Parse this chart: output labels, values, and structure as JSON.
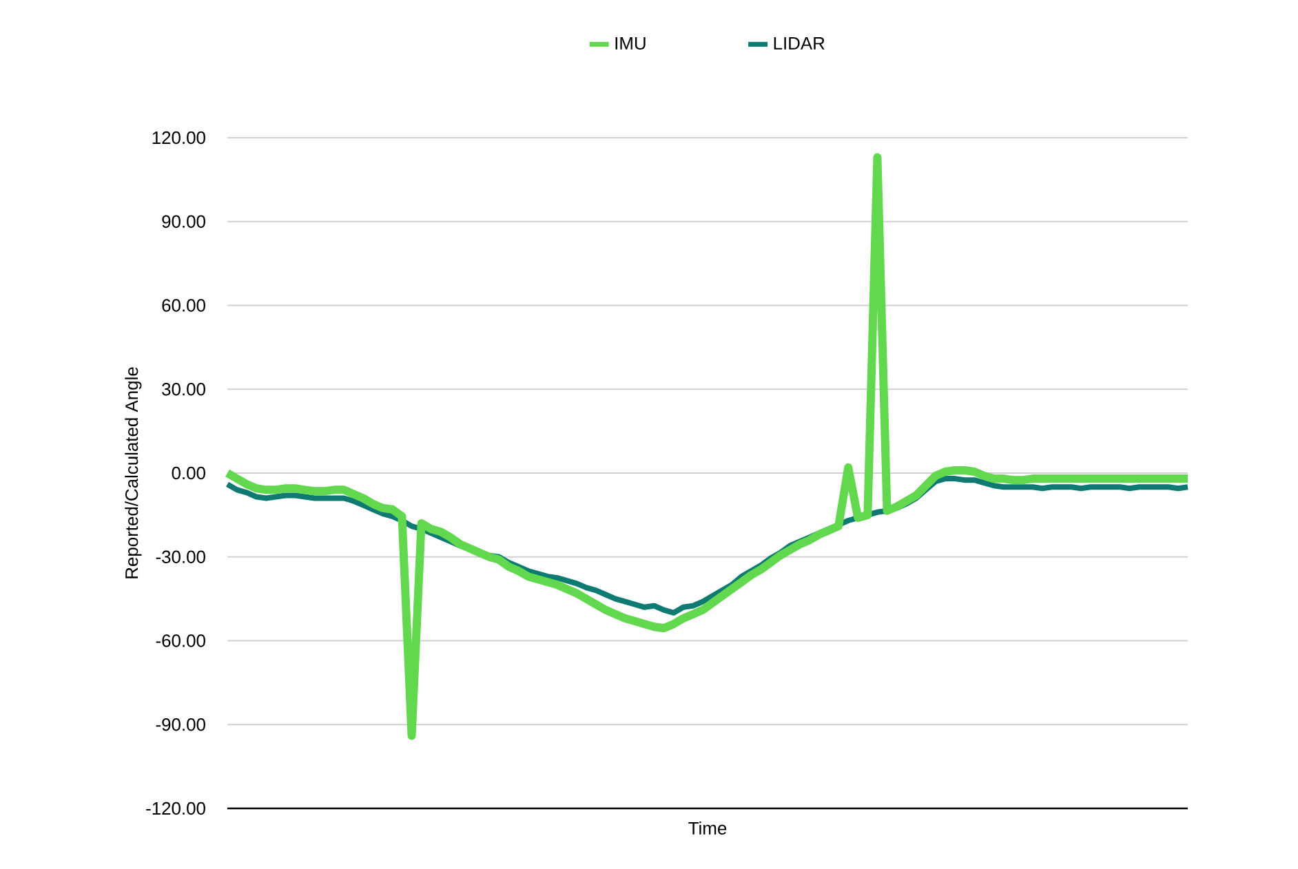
{
  "chart_data": {
    "type": "line",
    "xlabel": "Time",
    "ylabel": "Reported/Calculated Angle",
    "categories": [
      null,
      null,
      null,
      null,
      null,
      null,
      null,
      null,
      null,
      null,
      null,
      null,
      null,
      null,
      null,
      null,
      null,
      null,
      null,
      null,
      null,
      null,
      null,
      null,
      null,
      null,
      null,
      null,
      null,
      null,
      null,
      null,
      null,
      null,
      null,
      null,
      null,
      null,
      null,
      null,
      null,
      null,
      null,
      null,
      null,
      null,
      null,
      null,
      null,
      null,
      null,
      null,
      null,
      null,
      null,
      null,
      null,
      null,
      null,
      null,
      null,
      null,
      null,
      null,
      null,
      null,
      null,
      null,
      null,
      null,
      null,
      null,
      null,
      null,
      null,
      null,
      null,
      null,
      null,
      null,
      null,
      null,
      null,
      null,
      null,
      null,
      null,
      null,
      null,
      null,
      null,
      null,
      null,
      null,
      null,
      null,
      null,
      null,
      null,
      null
    ],
    "ylim": [
      -120,
      120
    ],
    "yticks": [
      {
        "value": -120,
        "label": "-120.00"
      },
      {
        "value": -90,
        "label": "-90.00"
      },
      {
        "value": -60,
        "label": "-60.00"
      },
      {
        "value": -30,
        "label": "-30.00"
      },
      {
        "value": 0,
        "label": "0.00"
      },
      {
        "value": 30,
        "label": "30.00"
      },
      {
        "value": 60,
        "label": "60.00"
      },
      {
        "value": 90,
        "label": "90.00"
      },
      {
        "value": 120,
        "label": "120.00"
      }
    ],
    "grid": "y",
    "legend": "top",
    "tick_labels": "y",
    "series": [
      {
        "name": "IMU",
        "color": "#62d84e",
        "values": [
          0,
          -2,
          -4,
          -5.5,
          -6,
          -6,
          -5.5,
          -5.5,
          -6,
          -6.5,
          -6.5,
          -6,
          -6,
          -7.5,
          -9,
          -11,
          -12.5,
          -13,
          -15.5,
          -94,
          -18,
          -20,
          -21,
          -23,
          -25.5,
          -27,
          -28.5,
          -30,
          -31,
          -33.5,
          -35,
          -37,
          -38,
          -39,
          -40,
          -41.5,
          -43,
          -45,
          -47,
          -49,
          -50.5,
          -52,
          -53,
          -54,
          -55,
          -55.5,
          -54,
          -52,
          -50.5,
          -49,
          -46.5,
          -44,
          -41.5,
          -39,
          -36.5,
          -34.5,
          -32,
          -29.5,
          -27.5,
          -25.5,
          -24,
          -22,
          -20.5,
          -19,
          2,
          -16,
          -15,
          113,
          -13.5,
          -12,
          -10,
          -8,
          -4.5,
          -1,
          0.5,
          1,
          1,
          0.5,
          -1,
          -2,
          -2,
          -2.5,
          -2.5,
          -2,
          -2,
          -2,
          -2,
          -2,
          -2,
          -2,
          -2,
          -2,
          -2,
          -2,
          -2,
          -2,
          -2,
          -2,
          -2,
          -2
        ]
      },
      {
        "name": "LIDAR",
        "color": "#0f7a72",
        "values": [
          -4,
          -6,
          -7,
          -8.5,
          -9,
          -8.5,
          -8,
          -8,
          -8.5,
          -9,
          -9,
          -9,
          -9,
          -10,
          -11.5,
          -13,
          -14.5,
          -15.5,
          -17,
          -19,
          -20,
          -21.5,
          -23,
          -24.5,
          -26,
          -27,
          -29,
          -29.5,
          -30,
          -32,
          -33.5,
          -35,
          -36,
          -37,
          -37.5,
          -38.5,
          -39.5,
          -41,
          -42,
          -43.5,
          -45,
          -46,
          -47,
          -48,
          -47.5,
          -49,
          -50,
          -48,
          -47.5,
          -46,
          -44,
          -42,
          -40,
          -37,
          -35,
          -33,
          -30.5,
          -28.5,
          -26,
          -24.5,
          -23,
          -21.5,
          -20,
          -18.5,
          -17,
          -16,
          -15,
          -14,
          -13.5,
          -12.5,
          -11,
          -9,
          -6,
          -3,
          -2,
          -2,
          -2.5,
          -2.5,
          -3.5,
          -4.5,
          -5,
          -5,
          -5,
          -5,
          -5.5,
          -5,
          -5,
          -5,
          -5.5,
          -5,
          -5,
          -5,
          -5,
          -5.5,
          -5,
          -5,
          -5,
          -5,
          -5.5,
          -5
        ]
      }
    ]
  }
}
